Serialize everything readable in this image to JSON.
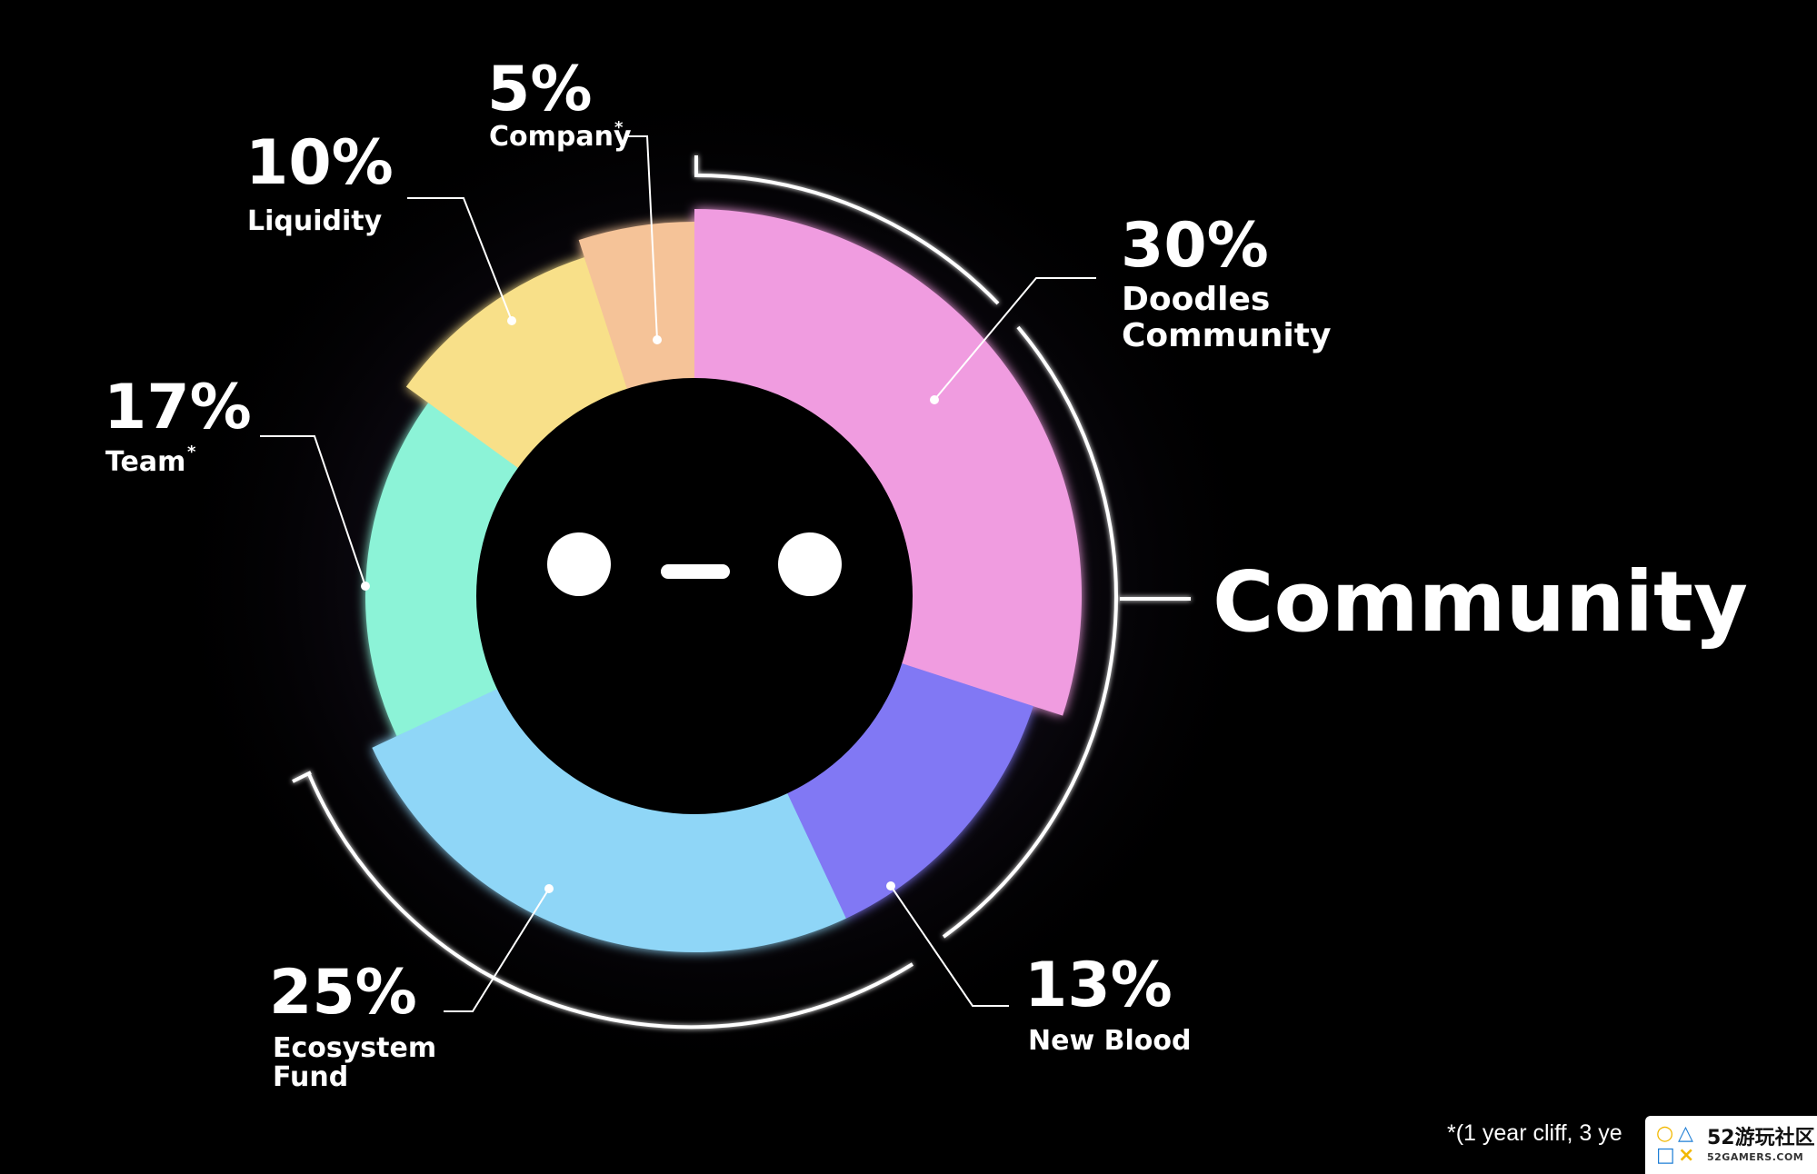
{
  "chart_data": {
    "type": "pie",
    "variant": "donut",
    "title": "",
    "slices": [
      {
        "label": "Doodles Community",
        "percent": 30,
        "display": "30%",
        "color": "#F09CE0"
      },
      {
        "label": "New Blood",
        "percent": 13,
        "display": "13%",
        "color": "#8178F4"
      },
      {
        "label": "Ecosystem Fund",
        "percent": 25,
        "display": "25%",
        "color": "#8FD6F7"
      },
      {
        "label": "Team",
        "percent": 17,
        "display": "17%",
        "color": "#8CF3D7",
        "asterisk": true
      },
      {
        "label": "Liquidity",
        "percent": 10,
        "display": "10%",
        "color": "#F8E089"
      },
      {
        "label": "Company",
        "percent": 5,
        "display": "5%",
        "color": "#F5C398",
        "asterisk": true
      }
    ],
    "group_label": "Community",
    "group_members": [
      "Doodles Community",
      "New Blood",
      "Ecosystem Fund"
    ],
    "legend": "none",
    "center_icon": "doodles-face-icon"
  },
  "labels": {
    "doodles_pct": "30%",
    "doodles_line1": "Doodles",
    "doodles_line2": "Community",
    "newblood_pct": "13%",
    "newblood_name": "New Blood",
    "ecosystem_pct": "25%",
    "ecosystem_line1": "Ecosystem",
    "ecosystem_line2": "Fund",
    "team_pct": "17%",
    "team_name": "Team",
    "liquidity_pct": "10%",
    "liquidity_name": "Liquidity",
    "company_pct": "5%",
    "company_name": "Company",
    "asterisk": "*",
    "community": "Community"
  },
  "footnote": "*(1 year cliff, 3 ye",
  "watermark": {
    "main": "52游玩社区",
    "sub": "52GAMERS.COM",
    "logo_icon": "playstation-shapes-icon"
  }
}
